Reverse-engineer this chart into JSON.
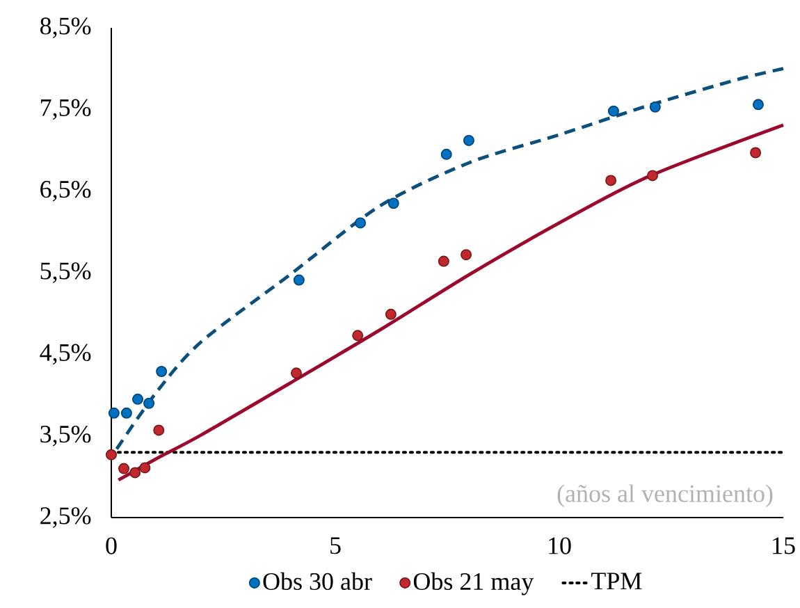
{
  "chart_data": {
    "type": "scatter",
    "xlim": [
      0,
      15
    ],
    "xticks": [
      0,
      5,
      10,
      15
    ],
    "ylim": [
      2.5,
      8.5
    ],
    "yticks": [
      {
        "value": 2.5,
        "label": "2,5%"
      },
      {
        "value": 3.5,
        "label": "3,5%"
      },
      {
        "value": 4.5,
        "label": "4,5%"
      },
      {
        "value": 5.5,
        "label": "5,5%"
      },
      {
        "value": 6.5,
        "label": "6,5%"
      },
      {
        "value": 7.5,
        "label": "7,5%"
      },
      {
        "value": 8.5,
        "label": "8,5%"
      }
    ],
    "grid": false,
    "legend": "bottom",
    "annotations": [
      "(años al vencimiento)"
    ],
    "series": [
      {
        "name": "Obs 30 abr",
        "type": "scatter",
        "marker": "circle",
        "color": "#0070c0",
        "x": [
          0.06,
          0.34,
          0.59,
          0.84,
          1.12,
          4.19,
          5.56,
          6.3,
          7.48,
          7.98,
          11.21,
          12.14,
          14.44
        ],
        "values": [
          3.78,
          3.78,
          3.95,
          3.9,
          4.29,
          5.41,
          6.11,
          6.35,
          6.95,
          7.12,
          7.48,
          7.53,
          7.56
        ]
      },
      {
        "name": "Obs 21 may",
        "type": "scatter",
        "marker": "circle",
        "color": "#c0282d",
        "x": [
          0,
          0.28,
          0.53,
          0.75,
          1.06,
          4.13,
          5.5,
          6.24,
          7.42,
          7.92,
          11.15,
          12.08,
          14.38
        ],
        "values": [
          3.27,
          3.1,
          3.05,
          3.11,
          3.57,
          4.27,
          4.73,
          4.99,
          5.64,
          5.72,
          6.63,
          6.69,
          6.97
        ]
      },
      {
        "name": "TPM",
        "type": "line",
        "line_style": "dotted",
        "marker": "none",
        "color": "#000000",
        "x": [
          0,
          15
        ],
        "values": [
          3.3,
          3.3
        ]
      },
      {
        "type": "line",
        "line_style": "dashed",
        "marker": "none",
        "color": "#0b4f7c",
        "x": [
          0.12,
          1,
          2,
          4,
          6,
          8,
          10,
          12,
          14,
          15
        ],
        "values": [
          3.34,
          4.03,
          4.65,
          5.48,
          6.32,
          6.85,
          7.19,
          7.55,
          7.87,
          8.0
        ]
      },
      {
        "type": "line",
        "line_style": "solid",
        "marker": "none",
        "color": "#9b0a2e",
        "x": [
          0.16,
          1,
          2,
          4,
          6,
          8,
          10,
          12,
          15
        ],
        "values": [
          2.96,
          3.22,
          3.51,
          4.15,
          4.8,
          5.48,
          6.11,
          6.68,
          7.31
        ]
      }
    ]
  }
}
